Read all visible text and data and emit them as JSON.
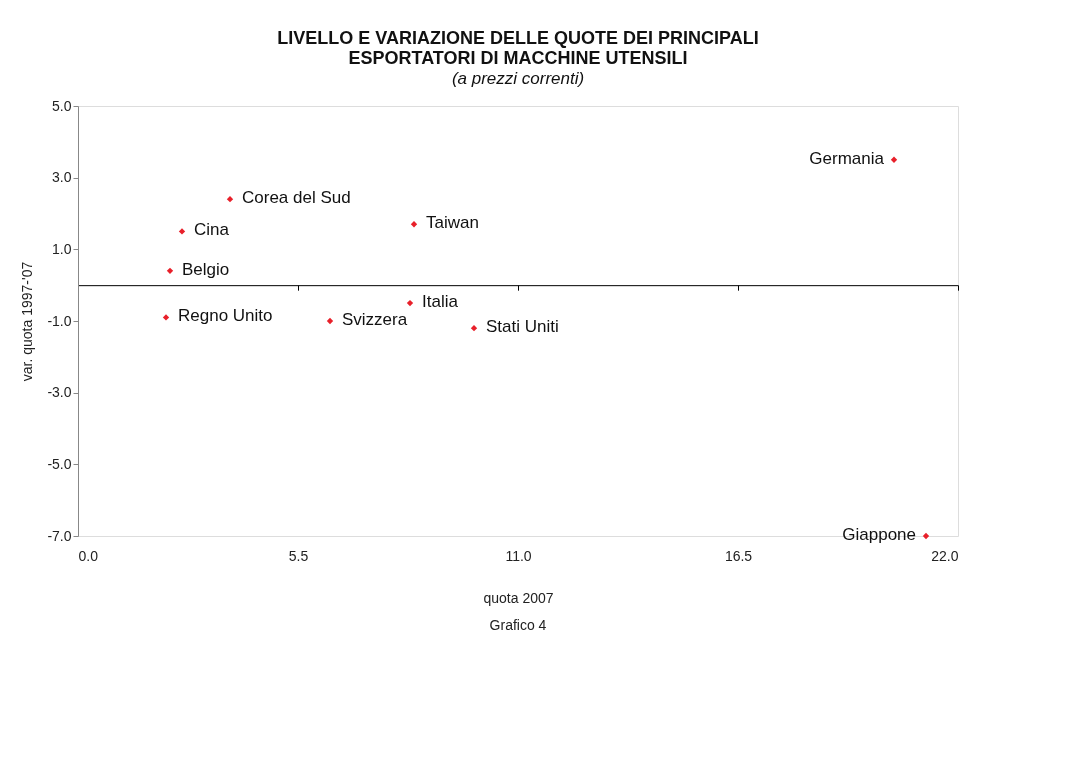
{
  "chart_data": {
    "type": "scatter",
    "title": "LIVELLO E VARIAZIONE DELLE QUOTE DEI PRINCIPALI\nESPORTATORI DI MACCHINE UTENSILI",
    "subtitle": "(a prezzi correnti)",
    "xlabel": "quota 2007",
    "ylabel": "var. quota 1997-'07",
    "x": [
      20.4,
      21.2,
      3.8,
      2.6,
      8.4,
      2.3,
      8.3,
      2.2,
      6.3,
      9.9
    ],
    "series": [
      {
        "color": "#e8202a",
        "values": [
          3.5,
          -7.0,
          2.4,
          1.5,
          1.7,
          0.4,
          -0.5,
          -0.9,
          -1.0,
          -1.2
        ]
      }
    ],
    "xlim": [
      0,
      22
    ],
    "xticks": [
      {
        "value": 0,
        "label": "0.0"
      },
      5.5,
      {
        "value": 11,
        "label": "11.0"
      },
      16.5,
      {
        "value": 22,
        "label": "22.0"
      }
    ],
    "ylim": [
      -7,
      5
    ],
    "yticks": [
      {
        "value": 5,
        "label": "5.0"
      },
      {
        "value": 3,
        "label": "3.0"
      },
      {
        "value": 1,
        "label": "1.0"
      },
      {
        "value": -1,
        "label": "-1.0"
      },
      {
        "value": -3,
        "label": "-3.0"
      },
      {
        "value": -5,
        "label": "-5.0"
      },
      {
        "value": -7,
        "label": "-7.0"
      }
    ],
    "marker": "diamond",
    "grid": false,
    "annotations": [
      {
        "text": "Germania",
        "x": 20.4,
        "y": 3.5
      },
      {
        "text": "Giappone",
        "x": 21.2,
        "y": -7.0
      },
      {
        "text": "Corea del Sud",
        "x": 3.8,
        "y": 2.4
      },
      {
        "text": "Cina",
        "x": 2.6,
        "y": 1.5
      },
      {
        "text": "Taiwan",
        "x": 8.4,
        "y": 1.7
      },
      {
        "text": "Belgio",
        "x": 2.3,
        "y": 0.4
      },
      {
        "text": "Italia",
        "x": 8.3,
        "y": -0.5
      },
      {
        "text": "Regno Unito",
        "x": 2.2,
        "y": -0.9
      },
      {
        "text": "Svizzera",
        "x": 6.3,
        "y": -1.0
      },
      {
        "text": "Stati Uniti",
        "x": 9.9,
        "y": -1.2
      },
      "Grafico 4"
    ]
  }
}
